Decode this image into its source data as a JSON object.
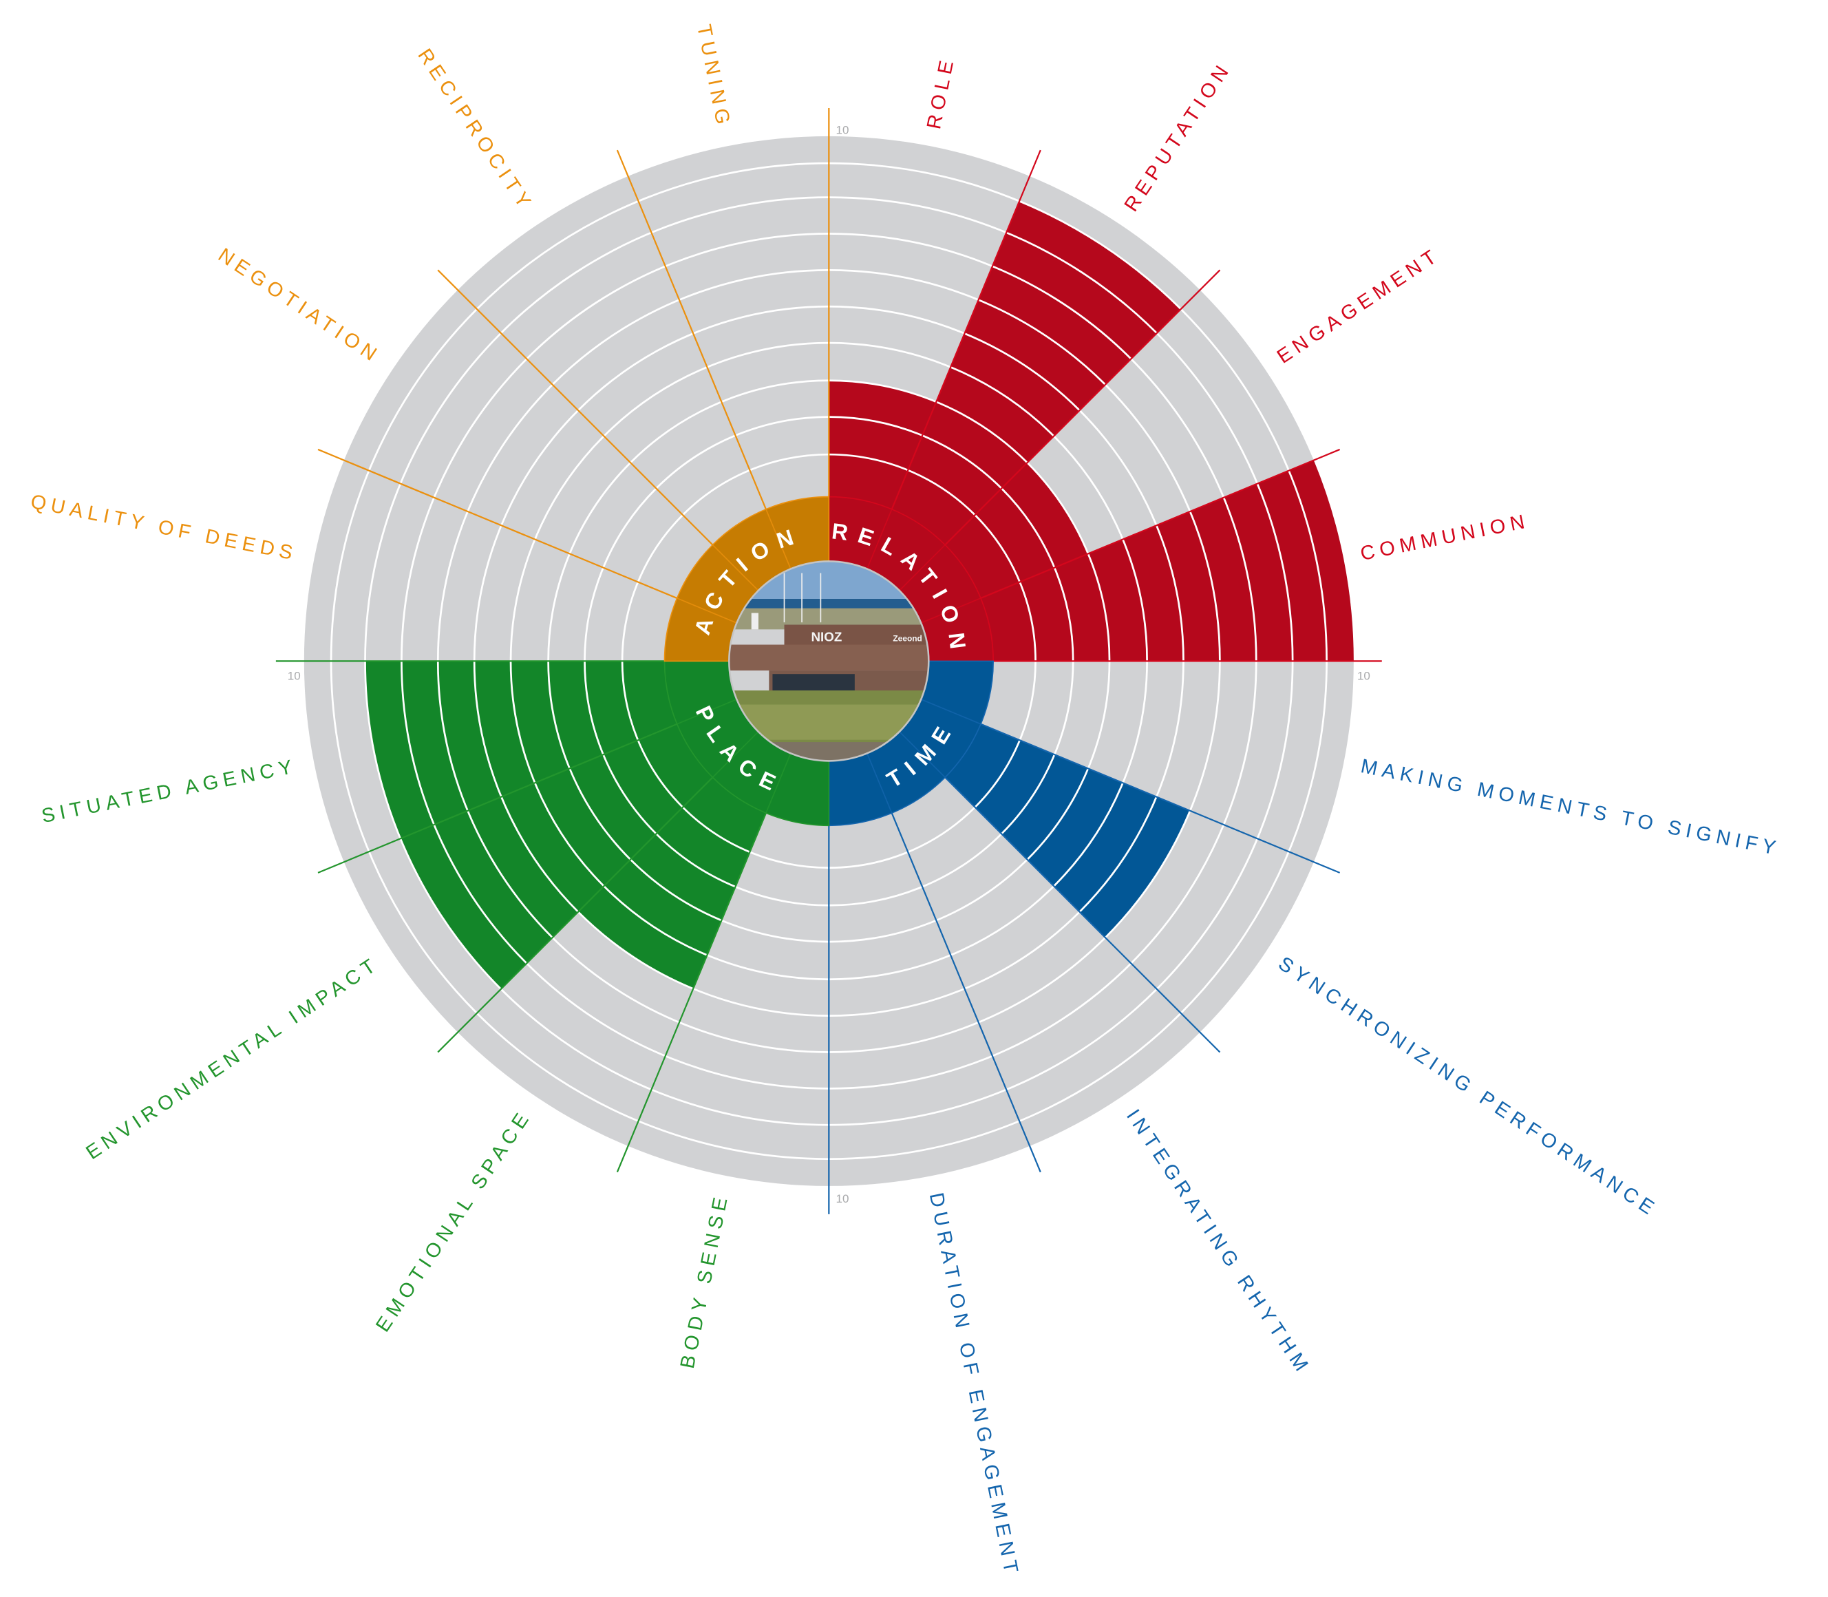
{
  "chart_data": {
    "type": "bar",
    "projection": "polar",
    "direction": "clockwise-from-top",
    "rlim": [
      0,
      10
    ],
    "grid": true,
    "radial_tick_labels": [
      "10",
      "10",
      "10",
      "10"
    ],
    "background_color": "#d1d2d4",
    "groups": [
      {
        "name": "RELATION",
        "color": "#b5081c",
        "label_color": "#d3071c",
        "ring_color": "#b5081c"
      },
      {
        "name": "TIME",
        "color": "#025796",
        "label_color": "#1465ad",
        "ring_color": "#025796"
      },
      {
        "name": "PLACE",
        "color": "#138629",
        "label_color": "#23952d",
        "ring_color": "#138629"
      },
      {
        "name": "ACTION",
        "color": "#c67c02",
        "label_color": "#eb900e",
        "ring_color": "#c67c02"
      }
    ],
    "categories": [
      {
        "label": "ROLE",
        "group": 0,
        "value": 3
      },
      {
        "label": "REPUTATION",
        "group": 0,
        "value": 9
      },
      {
        "label": "ENGAGEMENT",
        "group": 0,
        "value": 3
      },
      {
        "label": "COMMUNION",
        "group": 0,
        "value": 10
      },
      {
        "label": "MAKING MOMENTS TO SIGNIFY",
        "group": 1,
        "value": 0
      },
      {
        "label": "SYNCHRONIZING PERFORMANCE",
        "group": 1,
        "value": 6
      },
      {
        "label": "INTEGRATING RHYTHM",
        "group": 1,
        "value": 0
      },
      {
        "label": "DURATION OF ENGAGEMENT",
        "group": 1,
        "value": 0
      },
      {
        "label": "BODY SENSE",
        "group": 2,
        "value": 0
      },
      {
        "label": "EMOTIONAL SPACE",
        "group": 2,
        "value": 5
      },
      {
        "label": "ENVIRONMENTAL IMPACT",
        "group": 2,
        "value": 8
      },
      {
        "label": "SITUATED AGENCY",
        "group": 2,
        "value": 8
      },
      {
        "label": "QUALITY OF DEEDS",
        "group": 3,
        "value": 0
      },
      {
        "label": "NEGOTIATION",
        "group": 3,
        "value": 0
      },
      {
        "label": "RECIPROCITY",
        "group": 3,
        "value": 0
      },
      {
        "label": "TUNING",
        "group": 3,
        "value": 0
      }
    ]
  },
  "center_photo": {
    "sign_text": "NIOZ",
    "sign_text_2": "Zeeond"
  }
}
